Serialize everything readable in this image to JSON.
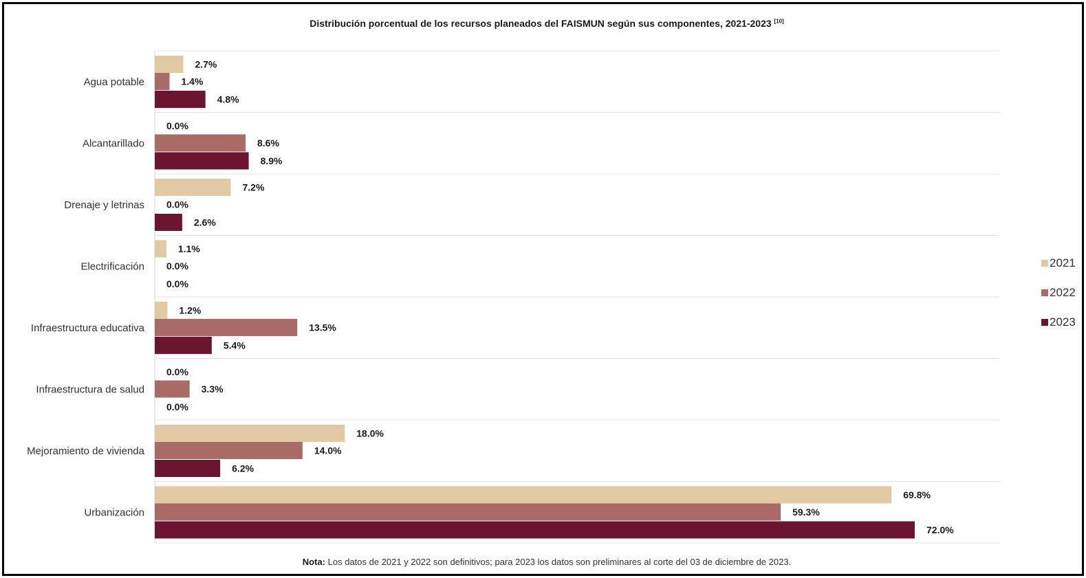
{
  "chart_data": {
    "type": "bar",
    "orientation": "horizontal",
    "title": "Distribución porcentual de los recursos planeados del FAISMUN según sus componentes, 2021-2023",
    "title_ref": "[10]",
    "categories": [
      "Agua potable",
      "Alcantarillado",
      "Drenaje y letrinas",
      "Electrificación",
      "Infraestructura educativa",
      "Infraestructura de salud",
      "Mejoramiento de vivienda",
      "Urbanización"
    ],
    "series": [
      {
        "name": "2021",
        "color": "#e0c9a3",
        "values": [
          2.7,
          0.0,
          7.2,
          1.1,
          1.2,
          0.0,
          18.0,
          69.8
        ]
      },
      {
        "name": "2022",
        "color": "#a86b66",
        "values": [
          1.4,
          8.6,
          0.0,
          0.0,
          13.5,
          3.3,
          14.0,
          59.3
        ]
      },
      {
        "name": "2023",
        "color": "#6b1530",
        "values": [
          4.8,
          8.9,
          2.6,
          0.0,
          5.4,
          0.0,
          6.2,
          72.0
        ]
      }
    ],
    "value_format": "percent_1dp",
    "xlim": [
      0,
      80
    ],
    "grid": true,
    "legend_position": "right"
  },
  "note": {
    "label": "Nota:",
    "text": "Los datos de 2021 y 2022 son definitivos; para 2023 los datos son preliminares al corte del 03 de diciembre de 2023."
  }
}
